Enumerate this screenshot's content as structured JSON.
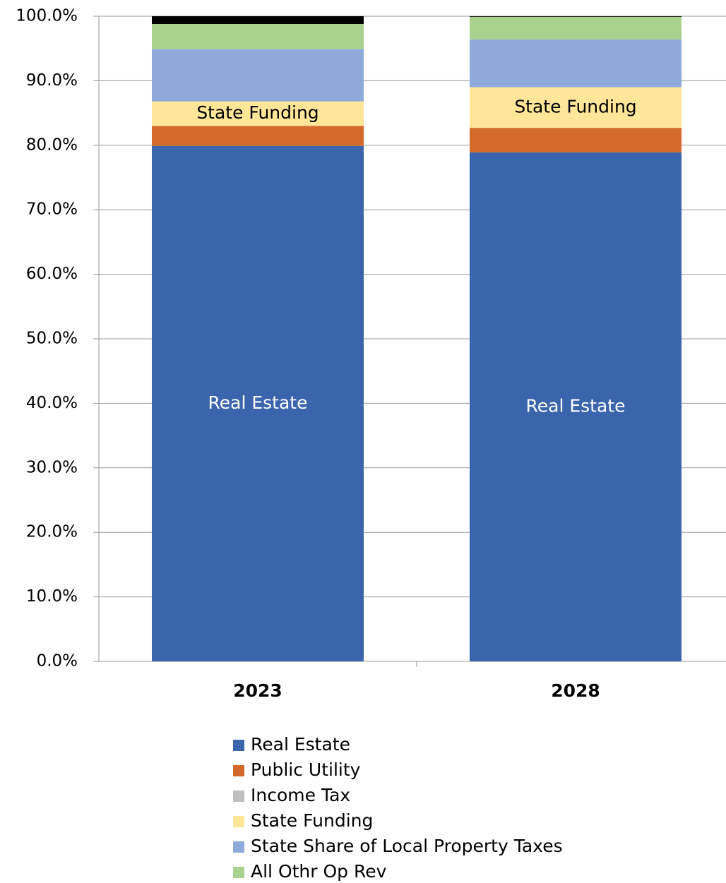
{
  "chart_data": {
    "type": "stacked_bar",
    "categories": [
      "2023",
      "2028"
    ],
    "series": [
      {
        "name": "Real Estate",
        "color": "#3a64ab",
        "values": [
          79.9,
          78.9
        ],
        "data_labels": true
      },
      {
        "name": "Public Utility",
        "color": "#d2692a",
        "values": [
          3.1,
          3.8
        ]
      },
      {
        "name": "Income Tax",
        "color": "#bfbfbf",
        "values": [
          0,
          0
        ]
      },
      {
        "name": "State Funding",
        "color": "#ffe699",
        "values": [
          3.8,
          6.3
        ],
        "data_labels": true
      },
      {
        "name": "State Share of Local Property Taxes",
        "color": "#8eaadb",
        "values": [
          8.1,
          7.4
        ]
      },
      {
        "name": "All Othr Op Rev",
        "color": "#a9d18e",
        "values": [
          3.9,
          3.5
        ]
      },
      {
        "name": null,
        "color": "#000000",
        "values": [
          1.2,
          0.1
        ]
      }
    ],
    "ylim": [
      0,
      100
    ],
    "yticks": [
      {
        "value": 0,
        "label": "0.0%"
      },
      {
        "value": 10,
        "label": "10.0%"
      },
      {
        "value": 20,
        "label": "20.0%"
      },
      {
        "value": 30,
        "label": "30.0%"
      },
      {
        "value": 40,
        "label": "40.0%"
      },
      {
        "value": 50,
        "label": "50.0%"
      },
      {
        "value": 60,
        "label": "60.0%"
      },
      {
        "value": 70,
        "label": "70.0%"
      },
      {
        "value": 80,
        "label": "80.0%"
      },
      {
        "value": 90,
        "label": "90.0%"
      },
      {
        "value": 100,
        "label": "100.0%"
      }
    ],
    "grid": true,
    "legend": "bottom"
  }
}
